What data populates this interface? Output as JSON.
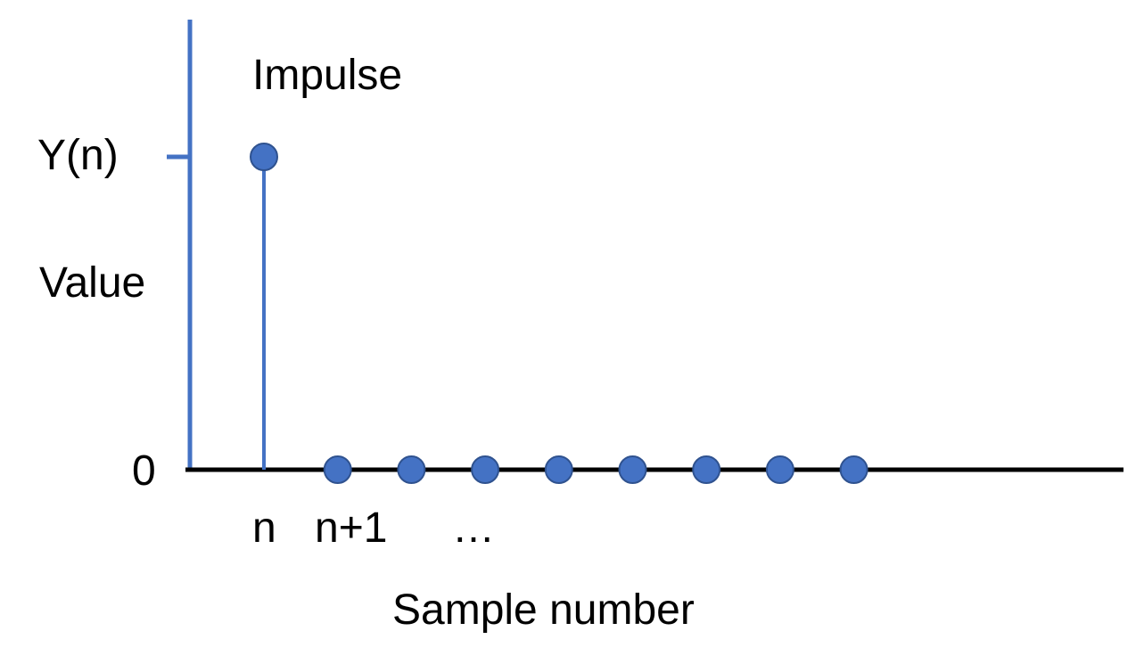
{
  "diagram": {
    "title": "Impulse",
    "y_tick_label": "Y(n)",
    "y_axis_label": "Value",
    "zero_label": "0",
    "x_labels": [
      "n",
      "n+1",
      "…"
    ],
    "x_axis_label": "Sample number"
  },
  "chart_data": {
    "type": "scatter",
    "samples": [
      {
        "x": 0,
        "y": 1
      },
      {
        "x": 1,
        "y": 0
      },
      {
        "x": 2,
        "y": 0
      },
      {
        "x": 3,
        "y": 0
      },
      {
        "x": 4,
        "y": 0
      },
      {
        "x": 5,
        "y": 0
      },
      {
        "x": 6,
        "y": 0
      },
      {
        "x": 7,
        "y": 0
      },
      {
        "x": 8,
        "y": 0
      }
    ],
    "title": "Impulse",
    "xlabel": "Sample number",
    "ylabel": "Value"
  },
  "colors": {
    "axis_y": "#4472c4",
    "axis_x": "#000000",
    "marker_fill": "#4472c4",
    "marker_stroke": "#2f528f",
    "text": "#000000"
  }
}
